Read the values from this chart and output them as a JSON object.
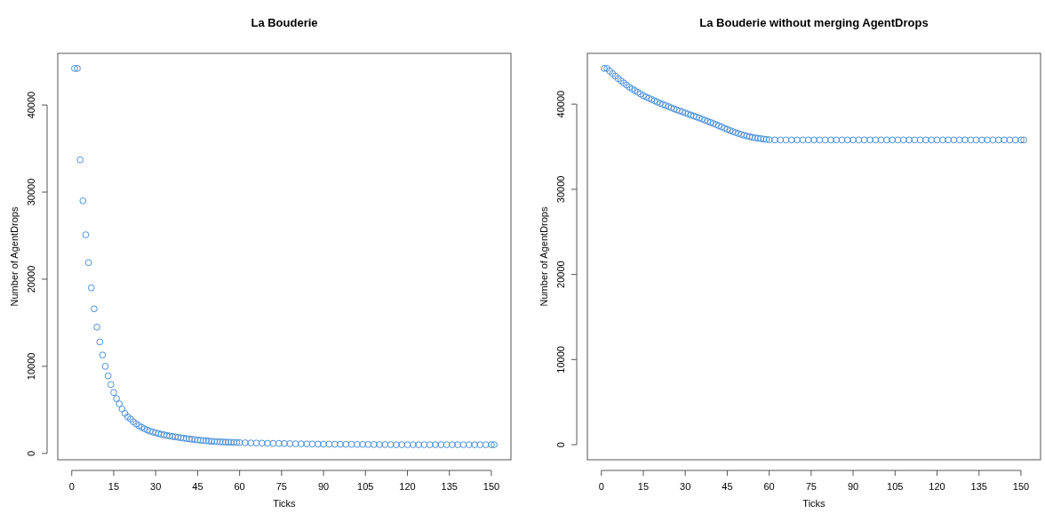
{
  "chart_data": [
    {
      "type": "scatter",
      "title": "La Bouderie",
      "xlabel": "Ticks",
      "ylabel": "Number of AgentDrops",
      "marker": "circle",
      "grid": false,
      "xlim": [
        -5,
        157
      ],
      "xticks": [
        0,
        15,
        30,
        45,
        60,
        75,
        90,
        105,
        120,
        135,
        150
      ],
      "ylim": [
        -728,
        45928
      ],
      "yticks": [
        0,
        10000,
        20000,
        30000,
        40000
      ],
      "series": [
        {
          "color": "#4a90d9",
          "x": [
            1,
            2,
            3,
            4,
            5,
            6,
            7,
            8,
            9,
            10,
            11,
            12,
            13,
            14,
            15,
            16,
            17,
            18,
            19,
            20,
            21,
            22,
            23,
            24,
            25,
            26,
            27,
            28,
            29,
            30,
            31,
            32,
            33,
            34,
            35,
            36,
            37,
            38,
            39,
            40,
            41,
            42,
            43,
            44,
            45,
            46,
            47,
            48,
            49,
            50,
            51,
            52,
            53,
            54,
            55,
            56,
            57,
            58,
            59,
            60,
            62,
            64,
            66,
            68,
            70,
            72,
            74,
            76,
            78,
            80,
            82,
            84,
            86,
            88,
            90,
            92,
            94,
            96,
            98,
            100,
            102,
            104,
            106,
            108,
            110,
            112,
            114,
            116,
            118,
            120,
            122,
            124,
            126,
            128,
            130,
            132,
            134,
            136,
            138,
            140,
            142,
            144,
            146,
            148,
            150,
            151
          ],
          "values": [
            44200,
            44200,
            33700,
            29000,
            25100,
            21900,
            19000,
            16600,
            14500,
            12800,
            11300,
            10000,
            8900,
            7900,
            7000,
            6300,
            5700,
            5100,
            4600,
            4200,
            3950,
            3650,
            3400,
            3180,
            3000,
            2830,
            2680,
            2560,
            2450,
            2360,
            2280,
            2200,
            2130,
            2060,
            2000,
            1950,
            1900,
            1850,
            1800,
            1750,
            1700,
            1660,
            1620,
            1580,
            1540,
            1510,
            1480,
            1450,
            1420,
            1390,
            1370,
            1350,
            1330,
            1310,
            1300,
            1290,
            1280,
            1260,
            1250,
            1240,
            1220,
            1200,
            1190,
            1180,
            1160,
            1150,
            1140,
            1130,
            1120,
            1110,
            1100,
            1090,
            1080,
            1070,
            1060,
            1060,
            1050,
            1050,
            1040,
            1040,
            1030,
            1030,
            1020,
            1020,
            1010,
            1010,
            1010,
            1000,
            1000,
            1000,
            1000,
            1000,
            1000,
            1000,
            1000,
            1000,
            1000,
            1000,
            1000,
            1000,
            1000,
            1000,
            1000,
            1000,
            1000,
            1000
          ]
        }
      ]
    },
    {
      "type": "scatter",
      "title": "La Bouderie without merging AgentDrops",
      "xlabel": "Ticks",
      "ylabel": "Number of AgentDrops",
      "marker": "circle",
      "grid": false,
      "xlim": [
        -5,
        157
      ],
      "xticks": [
        0,
        15,
        30,
        45,
        60,
        75,
        90,
        105,
        120,
        135,
        150
      ],
      "ylim": [
        -1768,
        45968
      ],
      "yticks": [
        0,
        10000,
        20000,
        30000,
        40000
      ],
      "series": [
        {
          "color": "#4a90d9",
          "x": [
            1,
            2,
            3,
            4,
            5,
            6,
            7,
            8,
            9,
            10,
            11,
            12,
            13,
            14,
            15,
            16,
            17,
            18,
            19,
            20,
            21,
            22,
            23,
            24,
            25,
            26,
            27,
            28,
            29,
            30,
            31,
            32,
            33,
            34,
            35,
            36,
            37,
            38,
            39,
            40,
            41,
            42,
            43,
            44,
            45,
            46,
            47,
            48,
            49,
            50,
            51,
            52,
            53,
            54,
            55,
            56,
            57,
            58,
            59,
            60,
            62,
            64,
            66,
            68,
            70,
            72,
            74,
            76,
            78,
            80,
            82,
            84,
            86,
            88,
            90,
            92,
            94,
            96,
            98,
            100,
            102,
            104,
            106,
            108,
            110,
            112,
            114,
            116,
            118,
            120,
            122,
            124,
            126,
            128,
            130,
            132,
            134,
            136,
            138,
            140,
            142,
            144,
            146,
            148,
            150,
            151
          ],
          "values": [
            44200,
            44200,
            43900,
            43600,
            43300,
            43000,
            42750,
            42500,
            42250,
            42000,
            41800,
            41600,
            41400,
            41200,
            41000,
            40850,
            40700,
            40550,
            40400,
            40250,
            40100,
            39970,
            39840,
            39710,
            39580,
            39450,
            39330,
            39210,
            39090,
            38970,
            38850,
            38730,
            38610,
            38490,
            38370,
            38250,
            38120,
            37990,
            37860,
            37730,
            37600,
            37460,
            37320,
            37180,
            37040,
            36900,
            36780,
            36660,
            36550,
            36450,
            36350,
            36260,
            36180,
            36110,
            36050,
            36000,
            35950,
            35900,
            35860,
            35830,
            35800,
            35800,
            35800,
            35800,
            35800,
            35800,
            35800,
            35800,
            35800,
            35800,
            35800,
            35800,
            35800,
            35800,
            35800,
            35800,
            35800,
            35800,
            35800,
            35800,
            35800,
            35800,
            35800,
            35800,
            35800,
            35800,
            35800,
            35800,
            35800,
            35800,
            35800,
            35800,
            35800,
            35800,
            35800,
            35800,
            35800,
            35800,
            35800,
            35800,
            35800,
            35800,
            35800,
            35800,
            35800,
            35800
          ]
        }
      ]
    }
  ]
}
